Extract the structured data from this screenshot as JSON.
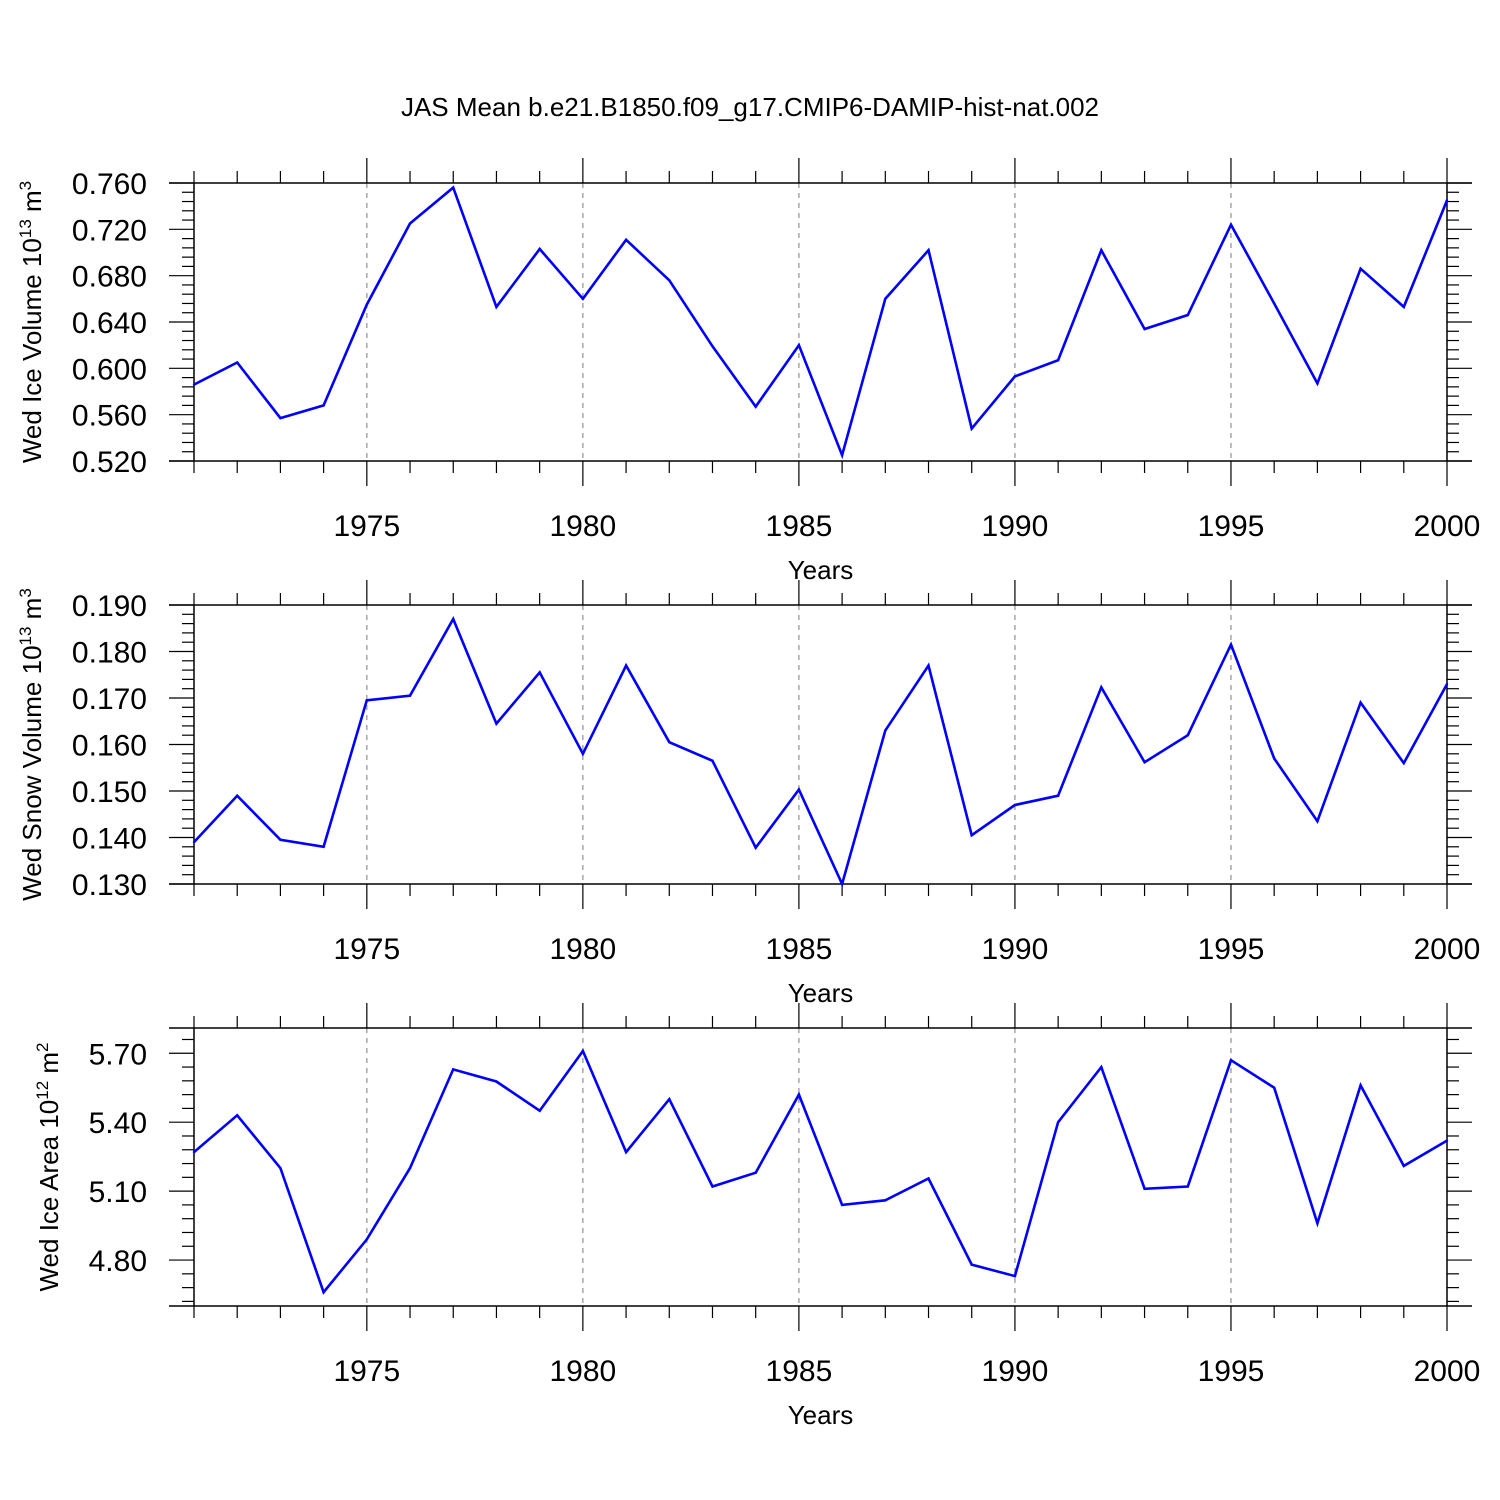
{
  "title": "JAS Mean b.e21.B1850.f09_g17.CMIP6-DAMIP-hist-nat.002",
  "colors": {
    "series": "#0000ff",
    "axis": "#000000",
    "grid": "#999999"
  },
  "chart_data": [
    {
      "type": "line",
      "xlabel": "Years",
      "ylabel": {
        "text": "Wed Ice Volume 10",
        "sup": "13",
        "unit": "m",
        "unit_sup": "3"
      },
      "xlim": [
        1971,
        2000
      ],
      "ylim": [
        0.52,
        0.76
      ],
      "yticks": [
        0.52,
        0.56,
        0.6,
        0.64,
        0.68,
        0.72,
        0.76
      ],
      "ytick_labels": [
        "0.520",
        "0.560",
        "0.600",
        "0.640",
        "0.680",
        "0.720",
        "0.760"
      ],
      "xticks": [
        1975,
        1980,
        1985,
        1990,
        1995,
        2000
      ],
      "xtick_labels": [
        "1975",
        "1980",
        "1985",
        "1990",
        "1995",
        "2000"
      ],
      "grid": "vertical dashed at labeled years",
      "x": [
        1971,
        1972,
        1973,
        1974,
        1975,
        1976,
        1977,
        1978,
        1979,
        1980,
        1981,
        1982,
        1983,
        1984,
        1985,
        1986,
        1987,
        1988,
        1989,
        1990,
        1991,
        1992,
        1993,
        1994,
        1995,
        1996,
        1997,
        1998,
        1999,
        2000
      ],
      "values": [
        0.586,
        0.605,
        0.557,
        0.568,
        0.655,
        0.725,
        0.756,
        0.653,
        0.703,
        0.66,
        0.711,
        0.676,
        0.619,
        0.567,
        0.62,
        0.525,
        0.66,
        0.702,
        0.548,
        0.593,
        0.607,
        0.702,
        0.634,
        0.646,
        0.724,
        0.656,
        0.587,
        0.686,
        0.653,
        0.745
      ]
    },
    {
      "type": "line",
      "xlabel": "Years",
      "ylabel": {
        "text": "Wed Snow Volume 10",
        "sup": "13",
        "unit": "m",
        "unit_sup": "3"
      },
      "xlim": [
        1971,
        2000
      ],
      "ylim": [
        0.13,
        0.19
      ],
      "yticks": [
        0.13,
        0.14,
        0.15,
        0.16,
        0.17,
        0.18,
        0.19
      ],
      "ytick_labels": [
        "0.130",
        "0.140",
        "0.150",
        "0.160",
        "0.170",
        "0.180",
        "0.190"
      ],
      "xticks": [
        1975,
        1980,
        1985,
        1990,
        1995,
        2000
      ],
      "xtick_labels": [
        "1975",
        "1980",
        "1985",
        "1990",
        "1995",
        "2000"
      ],
      "grid": "vertical dashed at labeled years",
      "x": [
        1971,
        1972,
        1973,
        1974,
        1975,
        1976,
        1977,
        1978,
        1979,
        1980,
        1981,
        1982,
        1983,
        1984,
        1985,
        1986,
        1987,
        1988,
        1989,
        1990,
        1991,
        1992,
        1993,
        1994,
        1995,
        1996,
        1997,
        1998,
        1999,
        2000
      ],
      "values": [
        0.139,
        0.149,
        0.1395,
        0.138,
        0.1695,
        0.1705,
        0.187,
        0.1645,
        0.1755,
        0.158,
        0.177,
        0.1605,
        0.1565,
        0.1378,
        0.1503,
        0.13,
        0.163,
        0.177,
        0.1405,
        0.147,
        0.149,
        0.1723,
        0.1562,
        0.162,
        0.1815,
        0.157,
        0.1435,
        0.169,
        0.156,
        0.173
      ]
    },
    {
      "type": "line",
      "xlabel": "Years",
      "ylabel": {
        "text": "Wed Ice Area 10",
        "sup": "12",
        "unit": "m",
        "unit_sup": "2"
      },
      "xlim": [
        1971,
        2000
      ],
      "ylim": [
        4.6,
        5.81
      ],
      "yticks": [
        4.8,
        5.1,
        5.4,
        5.7
      ],
      "ytick_labels": [
        "4.80",
        "5.10",
        "5.40",
        "5.70"
      ],
      "xticks": [
        1975,
        1980,
        1985,
        1990,
        1995,
        2000
      ],
      "xtick_labels": [
        "1975",
        "1980",
        "1985",
        "1990",
        "1995",
        "2000"
      ],
      "grid": "vertical dashed at labeled years",
      "x": [
        1971,
        1972,
        1973,
        1974,
        1975,
        1976,
        1977,
        1978,
        1979,
        1980,
        1981,
        1982,
        1983,
        1984,
        1985,
        1986,
        1987,
        1988,
        1989,
        1990,
        1991,
        1992,
        1993,
        1994,
        1995,
        1996,
        1997,
        1998,
        1999,
        2000
      ],
      "values": [
        5.27,
        5.43,
        5.2,
        4.66,
        4.89,
        5.2,
        5.63,
        5.577,
        5.45,
        5.71,
        5.27,
        5.5,
        5.12,
        5.18,
        5.52,
        5.04,
        5.06,
        5.155,
        4.78,
        4.73,
        5.4,
        5.64,
        5.11,
        5.12,
        5.67,
        5.55,
        4.96,
        5.56,
        5.21,
        5.32
      ]
    }
  ]
}
